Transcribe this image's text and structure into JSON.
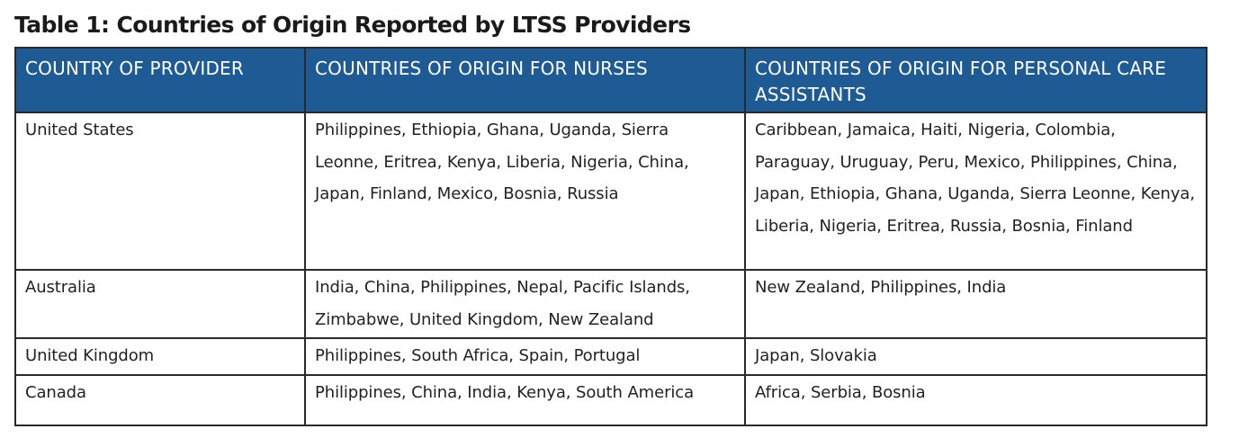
{
  "title": "Table 1: Countries of Origin Reported by LTSS Providers",
  "headers": {
    "provider": "COUNTRY OF PROVIDER",
    "nurses": "COUNTRIES OF ORIGIN FOR NURSES",
    "assistants": "COUNTRIES OF ORIGIN FOR PERSONAL CARE ASSISTANTS"
  },
  "rows": [
    {
      "provider": "United States",
      "nurses": "Philippines, Ethiopia, Ghana, Uganda, Sierra Leonne, Eritrea, Kenya, Liberia, Nigeria, China, Japan, Finland, Mexico, Bosnia, Russia",
      "assistants": "Caribbean, Jamaica, Haiti, Nigeria, Colombia, Paraguay, Uruguay, Peru, Mexico, Philippines, China, Japan, Ethiopia, Ghana, Uganda, Sierra Leonne, Kenya, Liberia, Nigeria, Eritrea, Russia, Bosnia, Finland"
    },
    {
      "provider": "Australia",
      "nurses": "India, China, Philippines, Nepal, Pacific Islands, Zimbabwe, United Kingdom, New Zealand",
      "assistants": "New Zealand, Philippines, India"
    },
    {
      "provider": "United Kingdom",
      "nurses": "Philippines, South Africa, Spain, Portugal",
      "assistants": "Japan, Slovakia"
    },
    {
      "provider": "Canada",
      "nurses": "Philippines, China, India, Kenya, South America",
      "assistants": "Africa, Serbia, Bosnia"
    }
  ],
  "colors": {
    "header_background": "#1e5a93",
    "header_text": "#ffffff",
    "border": "#2a2a2a"
  }
}
